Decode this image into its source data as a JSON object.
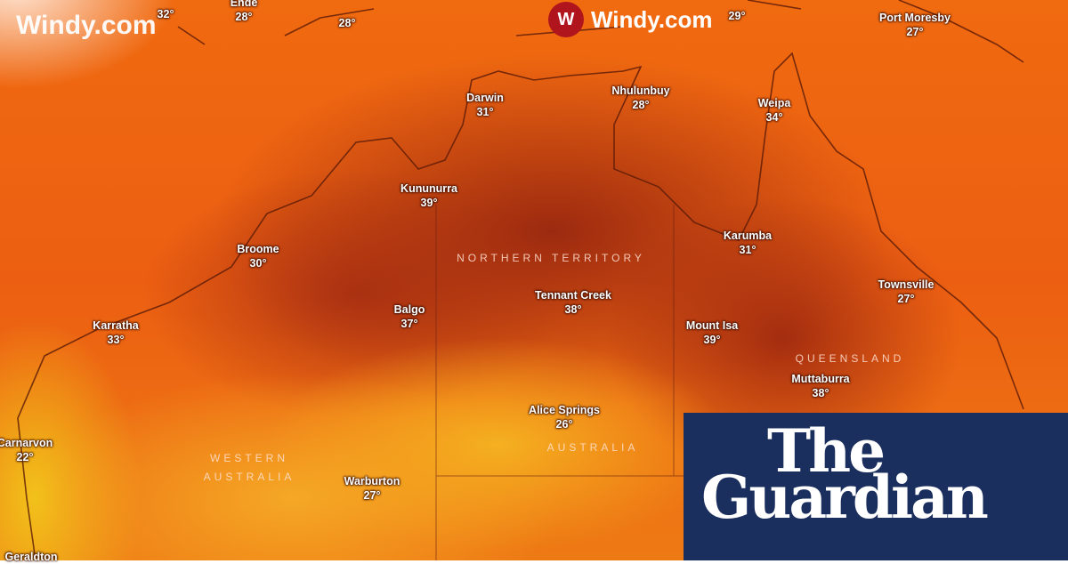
{
  "watermarks": {
    "windy_left": "Windy.com",
    "windy_top": "Windy.com",
    "windy_icon": "windy-logo-icon"
  },
  "cities": [
    {
      "name": "",
      "temp": "32°"
    },
    {
      "name": "Ende",
      "temp": "28°"
    },
    {
      "name": "",
      "temp": "28°"
    },
    {
      "name": "",
      "temp": "29°"
    },
    {
      "name": "Port Moresby",
      "temp": "27°"
    },
    {
      "name": "Darwin",
      "temp": "31°"
    },
    {
      "name": "Nhulunbuy",
      "temp": "28°"
    },
    {
      "name": "Weipa",
      "temp": "34°"
    },
    {
      "name": "Kununurra",
      "temp": "39°"
    },
    {
      "name": "Broome",
      "temp": "30°"
    },
    {
      "name": "Karumba",
      "temp": "31°"
    },
    {
      "name": "Tennant Creek",
      "temp": "38°"
    },
    {
      "name": "Townsville",
      "temp": "27°"
    },
    {
      "name": "Balgo",
      "temp": "37°"
    },
    {
      "name": "Karratha",
      "temp": "33°"
    },
    {
      "name": "Mount Isa",
      "temp": "39°"
    },
    {
      "name": "Muttaburra",
      "temp": "38°"
    },
    {
      "name": "Alice Springs",
      "temp": "26°"
    },
    {
      "name": "Carnarvon",
      "temp": "22°"
    },
    {
      "name": "Warburton",
      "temp": "27°"
    },
    {
      "name": "Geraldton",
      "temp": ""
    }
  ],
  "regions": {
    "nt": "NORTHERN TERRITORY",
    "qld": "QUEENSLAND",
    "wa": "WESTERN AUSTRALIA",
    "country": "AUSTRALIA"
  },
  "brand": {
    "line1": "The",
    "line2": "Guardian",
    "bg": "#1b2f5e"
  }
}
